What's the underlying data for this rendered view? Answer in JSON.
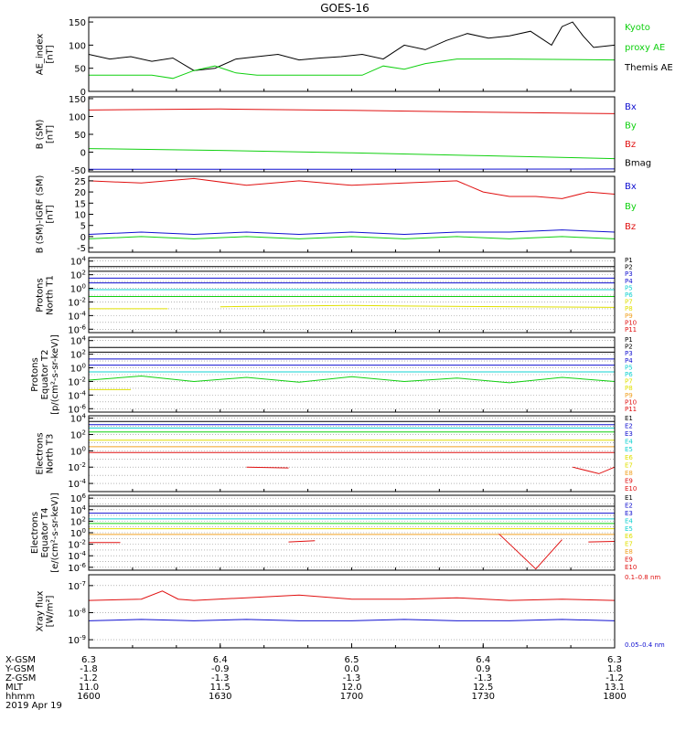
{
  "title": "GOES-16",
  "colors": {
    "axis": "#000000",
    "black": "#000000",
    "red": "#e01010",
    "green": "#10d010",
    "blue": "#1010d0",
    "cyan": "#10d0d0",
    "orange": "#f0a020",
    "yellow": "#e0e000",
    "grid": "#888888"
  },
  "chart_data": [
    {
      "type": "line",
      "ylabel": [
        "AE_index",
        "[nT]"
      ],
      "yticks": [
        "150",
        "100",
        "50",
        "0"
      ],
      "ylim": [
        0,
        160
      ],
      "legend": [
        {
          "text": "Kyoto",
          "color": "green"
        },
        {
          "text": "proxy AE",
          "color": "green"
        },
        {
          "text": "Themis AE",
          "color": "black"
        }
      ],
      "series": [
        {
          "name": "Themis AE",
          "color": "black",
          "x": [
            0,
            0.04,
            0.08,
            0.12,
            0.16,
            0.2,
            0.24,
            0.28,
            0.32,
            0.36,
            0.4,
            0.44,
            0.48,
            0.52,
            0.56,
            0.6,
            0.64,
            0.68,
            0.72,
            0.76,
            0.8,
            0.84,
            0.88,
            0.9,
            0.92,
            0.94,
            0.96,
            1
          ],
          "y": [
            80,
            70,
            75,
            65,
            72,
            45,
            50,
            70,
            75,
            80,
            68,
            72,
            75,
            80,
            70,
            100,
            90,
            110,
            125,
            115,
            120,
            130,
            100,
            140,
            150,
            120,
            95,
            100
          ]
        },
        {
          "name": "Kyoto proxy AE",
          "color": "green",
          "x": [
            0,
            0.12,
            0.16,
            0.2,
            0.24,
            0.28,
            0.32,
            0.4,
            0.52,
            0.56,
            0.6,
            0.64,
            0.7,
            0.8,
            1
          ],
          "y": [
            35,
            35,
            28,
            45,
            55,
            40,
            35,
            35,
            35,
            55,
            48,
            60,
            70,
            70,
            68
          ]
        }
      ]
    },
    {
      "type": "line",
      "ylabel": [
        "B (SM)",
        "[nT]"
      ],
      "yticks": [
        "150",
        "100",
        "50",
        "0",
        "-50"
      ],
      "ylim": [
        -55,
        155
      ],
      "legend": [
        {
          "text": "Bx",
          "color": "blue"
        },
        {
          "text": "By",
          "color": "green"
        },
        {
          "text": "Bz",
          "color": "red"
        },
        {
          "text": "Bmag",
          "color": "black"
        }
      ],
      "series": [
        {
          "name": "Bz",
          "color": "red",
          "x": [
            0,
            0.25,
            0.5,
            0.75,
            1
          ],
          "y": [
            118,
            121,
            117,
            112,
            108
          ]
        },
        {
          "name": "By",
          "color": "green",
          "x": [
            0,
            0.25,
            0.5,
            0.75,
            1
          ],
          "y": [
            10,
            5,
            -2,
            -10,
            -18
          ]
        },
        {
          "name": "Bx",
          "color": "blue",
          "x": [
            0,
            0.5,
            1
          ],
          "y": [
            -48,
            -48,
            -47
          ]
        }
      ]
    },
    {
      "type": "line",
      "ylabel": [
        "B (SM)-IGRF (SM)",
        "[nT]"
      ],
      "yticks": [
        "25",
        "20",
        "15",
        "10",
        "5",
        "0",
        "-5"
      ],
      "ylim": [
        -7,
        27
      ],
      "legend": [
        {
          "text": "Bx",
          "color": "blue"
        },
        {
          "text": "By",
          "color": "green"
        },
        {
          "text": "Bz",
          "color": "red"
        }
      ],
      "series": [
        {
          "name": "Bz",
          "color": "red",
          "x": [
            0,
            0.1,
            0.2,
            0.3,
            0.4,
            0.5,
            0.6,
            0.7,
            0.75,
            0.8,
            0.85,
            0.9,
            0.95,
            1
          ],
          "y": [
            25,
            24,
            26,
            23,
            25,
            23,
            24,
            25,
            20,
            18,
            18,
            17,
            20,
            19
          ]
        },
        {
          "name": "Bx",
          "color": "blue",
          "x": [
            0,
            0.1,
            0.2,
            0.3,
            0.4,
            0.5,
            0.6,
            0.7,
            0.8,
            0.9,
            1
          ],
          "y": [
            1,
            2,
            1,
            2,
            1,
            2,
            1,
            2,
            2,
            3,
            2
          ]
        },
        {
          "name": "By",
          "color": "green",
          "x": [
            0,
            0.1,
            0.2,
            0.3,
            0.4,
            0.5,
            0.6,
            0.7,
            0.8,
            0.9,
            1
          ],
          "y": [
            -1,
            0,
            -1,
            0,
            -1,
            0,
            -1,
            0,
            -1,
            0,
            -1
          ]
        }
      ]
    },
    {
      "type": "line",
      "log": true,
      "ylabel": [
        "Protons",
        "North T1"
      ],
      "yticks": [
        "10^4",
        "10^2",
        "10^0",
        "10^-2",
        "10^-4",
        "10^-6"
      ],
      "ylim": [
        -6.5,
        4.5
      ],
      "legend": [
        {
          "text": "P1",
          "color": "black"
        },
        {
          "text": "P2",
          "color": "black"
        },
        {
          "text": "P3",
          "color": "blue"
        },
        {
          "text": "P4",
          "color": "blue"
        },
        {
          "text": "P5",
          "color": "cyan"
        },
        {
          "text": "P6",
          "color": "cyan"
        },
        {
          "text": "P7",
          "color": "yellow"
        },
        {
          "text": "P8",
          "color": "yellow"
        },
        {
          "text": "P9",
          "color": "orange"
        },
        {
          "text": "P10",
          "color": "red"
        },
        {
          "text": "P11",
          "color": "red"
        }
      ],
      "series": [
        {
          "color": "black",
          "x": [
            0,
            1
          ],
          "y": [
            3.2,
            3.2
          ]
        },
        {
          "color": "black",
          "x": [
            0,
            1
          ],
          "y": [
            2.5,
            2.5
          ]
        },
        {
          "color": "blue",
          "x": [
            0,
            1
          ],
          "y": [
            1.5,
            1.5
          ]
        },
        {
          "color": "blue",
          "x": [
            0,
            1
          ],
          "y": [
            0.8,
            0.8
          ]
        },
        {
          "color": "cyan",
          "x": [
            0,
            1
          ],
          "y": [
            -0.2,
            -0.2
          ]
        },
        {
          "color": "green",
          "x": [
            0,
            1
          ],
          "y": [
            -1.2,
            -1.2
          ]
        },
        {
          "color": "yellow",
          "x": [
            0,
            0.15
          ],
          "y": [
            -3,
            -3
          ]
        },
        {
          "color": "yellow",
          "x": [
            0.25,
            0.5,
            0.6,
            1
          ],
          "y": [
            -2.7,
            -2.5,
            -2.6,
            -2.8
          ]
        }
      ]
    },
    {
      "type": "line",
      "log": true,
      "ylabel": [
        "Protons",
        "Equator T2",
        "[p/(cm²-s-sr-keV)]"
      ],
      "yticks": [
        "10^4",
        "10^2",
        "10^0",
        "10^-2",
        "10^-4",
        "10^-6"
      ],
      "ylim": [
        -6.5,
        4.5
      ],
      "legend": [
        {
          "text": "P1",
          "color": "black"
        },
        {
          "text": "P2",
          "color": "black"
        },
        {
          "text": "P3",
          "color": "blue"
        },
        {
          "text": "P4",
          "color": "blue"
        },
        {
          "text": "P5",
          "color": "cyan"
        },
        {
          "text": "P6",
          "color": "cyan"
        },
        {
          "text": "P7",
          "color": "yellow"
        },
        {
          "text": "P8",
          "color": "yellow"
        },
        {
          "text": "P9",
          "color": "orange"
        },
        {
          "text": "P10",
          "color": "red"
        },
        {
          "text": "P11",
          "color": "red"
        }
      ],
      "series": [
        {
          "color": "black",
          "x": [
            0,
            1
          ],
          "y": [
            3.0,
            3.0
          ]
        },
        {
          "color": "black",
          "x": [
            0,
            1
          ],
          "y": [
            2.3,
            2.3
          ]
        },
        {
          "color": "blue",
          "x": [
            0,
            1
          ],
          "y": [
            1.3,
            1.3
          ]
        },
        {
          "color": "blue",
          "x": [
            0,
            1
          ],
          "y": [
            0.4,
            0.4
          ]
        },
        {
          "color": "cyan",
          "x": [
            0,
            1
          ],
          "y": [
            -0.6,
            -0.6
          ]
        },
        {
          "color": "green",
          "x": [
            0,
            0.1,
            0.2,
            0.3,
            0.4,
            0.5,
            0.6,
            0.7,
            0.8,
            0.9,
            1
          ],
          "y": [
            -1.8,
            -1.2,
            -2.0,
            -1.4,
            -2.1,
            -1.3,
            -2.0,
            -1.5,
            -2.2,
            -1.4,
            -2.0
          ]
        },
        {
          "color": "yellow",
          "x": [
            0,
            0.08
          ],
          "y": [
            -3.2,
            -3.2
          ]
        }
      ]
    },
    {
      "type": "line",
      "log": true,
      "ylabel": [
        "Electrons",
        "North T3"
      ],
      "yticks": [
        "10^4",
        "10^2",
        "10^0",
        "10^-2",
        "10^-4"
      ],
      "ylim": [
        -5,
        4.3
      ],
      "legend": [
        {
          "text": "E1",
          "color": "black"
        },
        {
          "text": "E2",
          "color": "blue"
        },
        {
          "text": "E3",
          "color": "blue"
        },
        {
          "text": "E4",
          "color": "cyan"
        },
        {
          "text": "E5",
          "color": "cyan"
        },
        {
          "text": "E6",
          "color": "yellow"
        },
        {
          "text": "E7",
          "color": "yellow"
        },
        {
          "text": "E8",
          "color": "orange"
        },
        {
          "text": "E9",
          "color": "red"
        },
        {
          "text": "E10",
          "color": "red"
        }
      ],
      "series": [
        {
          "color": "black",
          "x": [
            0,
            1
          ],
          "y": [
            3.6,
            3.6
          ]
        },
        {
          "color": "blue",
          "x": [
            0,
            1
          ],
          "y": [
            3.2,
            3.2
          ]
        },
        {
          "color": "cyan",
          "x": [
            0,
            1
          ],
          "y": [
            2.8,
            2.8
          ]
        },
        {
          "color": "green",
          "x": [
            0,
            1
          ],
          "y": [
            2.3,
            2.3
          ]
        },
        {
          "color": "yellow",
          "x": [
            0,
            1
          ],
          "y": [
            1.3,
            1.3
          ]
        },
        {
          "color": "orange",
          "x": [
            0,
            1
          ],
          "y": [
            0.5,
            0.5
          ]
        },
        {
          "color": "red",
          "x": [
            0,
            1
          ],
          "y": [
            -0.2,
            -0.2
          ]
        },
        {
          "color": "red",
          "x": [
            0.3,
            0.38
          ],
          "y": [
            -2.0,
            -2.1
          ]
        },
        {
          "color": "red",
          "x": [
            0.92,
            0.97,
            1
          ],
          "y": [
            -2.0,
            -2.8,
            -2.0
          ]
        }
      ]
    },
    {
      "type": "line",
      "log": true,
      "ylabel": [
        "Electrons",
        "Equator T4",
        "[e/(cm²-s-sr-keV)]"
      ],
      "yticks": [
        "10^6",
        "10^4",
        "10^2",
        "10^0",
        "10^-2",
        "10^-4",
        "10^-6"
      ],
      "ylim": [
        -6.5,
        6.5
      ],
      "legend": [
        {
          "text": "E1",
          "color": "black"
        },
        {
          "text": "E2",
          "color": "blue"
        },
        {
          "text": "E3",
          "color": "blue"
        },
        {
          "text": "E4",
          "color": "cyan"
        },
        {
          "text": "E5",
          "color": "cyan"
        },
        {
          "text": "E6",
          "color": "yellow"
        },
        {
          "text": "E7",
          "color": "yellow"
        },
        {
          "text": "E8",
          "color": "orange"
        },
        {
          "text": "E9",
          "color": "red"
        },
        {
          "text": "E10",
          "color": "red"
        }
      ],
      "series": [
        {
          "color": "black",
          "x": [
            0,
            1
          ],
          "y": [
            4.6,
            4.6
          ]
        },
        {
          "color": "blue",
          "x": [
            0,
            1
          ],
          "y": [
            3.4,
            3.4
          ]
        },
        {
          "color": "cyan",
          "x": [
            0,
            1
          ],
          "y": [
            2.4,
            2.4
          ]
        },
        {
          "color": "green",
          "x": [
            0,
            1
          ],
          "y": [
            1.6,
            1.6
          ]
        },
        {
          "color": "yellow",
          "x": [
            0,
            1
          ],
          "y": [
            0.7,
            0.7
          ]
        },
        {
          "color": "orange",
          "x": [
            0,
            1
          ],
          "y": [
            -0.3,
            -0.3
          ]
        },
        {
          "color": "red",
          "x": [
            0,
            0.06
          ],
          "y": [
            -1.7,
            -1.7
          ]
        },
        {
          "color": "red",
          "x": [
            0.38,
            0.43
          ],
          "y": [
            -1.6,
            -1.4
          ]
        },
        {
          "color": "red",
          "x": [
            0.78,
            0.85,
            0.9
          ],
          "y": [
            -0.2,
            -6.3,
            -1.2
          ]
        },
        {
          "color": "red",
          "x": [
            0.95,
            1
          ],
          "y": [
            -1.6,
            -1.5
          ]
        }
      ]
    },
    {
      "type": "line",
      "log": true,
      "ylabel": [
        "Xray flux",
        "[W/m²]"
      ],
      "yticks": [
        "10^-7",
        "10^-8",
        "10^-9"
      ],
      "ylim": [
        -9.3,
        -6.6
      ],
      "legend": [
        {
          "text": "0.1–0.8 nm",
          "color": "red"
        },
        {
          "text": "0.05–0.4 nm",
          "color": "blue"
        }
      ],
      "series": [
        {
          "name": "0.1–0.8 nm",
          "color": "red",
          "x": [
            0,
            0.1,
            0.14,
            0.17,
            0.2,
            0.3,
            0.4,
            0.5,
            0.6,
            0.7,
            0.8,
            0.9,
            1
          ],
          "y": [
            -7.55,
            -7.5,
            -7.2,
            -7.5,
            -7.55,
            -7.45,
            -7.35,
            -7.5,
            -7.5,
            -7.45,
            -7.55,
            -7.5,
            -7.55
          ]
        },
        {
          "name": "0.05–0.4 nm",
          "color": "blue",
          "x": [
            0,
            0.1,
            0.2,
            0.3,
            0.4,
            0.5,
            0.6,
            0.7,
            0.8,
            0.9,
            1
          ],
          "y": [
            -8.3,
            -8.25,
            -8.3,
            -8.25,
            -8.3,
            -8.3,
            -8.25,
            -8.3,
            -8.3,
            -8.25,
            -8.3
          ]
        }
      ]
    }
  ],
  "x_axis": {
    "row_labels": [
      "X-GSM",
      "Y-GSM",
      "Z-GSM",
      "MLT",
      "hhmm",
      "2019 Apr 19"
    ],
    "ticks": [
      {
        "x": [
          "6.3",
          "-1.8",
          "-1.2",
          "11.0",
          "1600"
        ]
      },
      {
        "x": [
          "6.4",
          "-0.9",
          "-1.3",
          "11.5",
          "1630"
        ]
      },
      {
        "x": [
          "6.5",
          "0.0",
          "-1.3",
          "12.0",
          "1700"
        ]
      },
      {
        "x": [
          "6.4",
          "0.9",
          "-1.3",
          "12.5",
          "1730"
        ]
      },
      {
        "x": [
          "6.3",
          "1.8",
          "-1.2",
          "13.1",
          "1800"
        ]
      }
    ]
  }
}
